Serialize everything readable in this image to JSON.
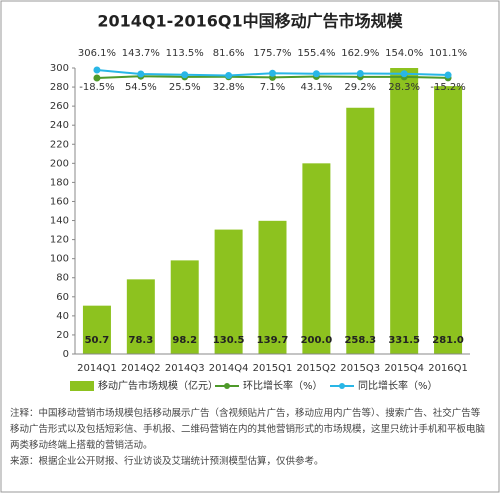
{
  "chart_data": {
    "type": "bar",
    "title": "2014Q1-2016Q1中国移动广告市场规模",
    "categories": [
      "2014Q1",
      "2014Q2",
      "2014Q3",
      "2014Q4",
      "2015Q1",
      "2015Q2",
      "2015Q3",
      "2015Q4",
      "2016Q1"
    ],
    "series": [
      {
        "name": "移动广告市场规模（亿元）",
        "type": "bar",
        "color": "#8dc21f",
        "values": [
          50.7,
          78.3,
          98.2,
          130.5,
          139.7,
          200.0,
          258.3,
          331.5,
          281.0
        ],
        "value_labels": [
          "50.7",
          "78.3",
          "98.2",
          "130.5",
          "139.7",
          "200.0",
          "258.3",
          "331.5",
          "281.0"
        ]
      },
      {
        "name": "环比增长率（%）",
        "type": "line",
        "axis": "y2",
        "color": "#4e9a2a",
        "values": [
          -18.5,
          54.5,
          25.5,
          32.8,
          7.1,
          43.1,
          29.2,
          28.3,
          -15.2
        ],
        "value_labels": [
          "-18.5%",
          "54.5%",
          "25.5%",
          "32.8%",
          "7.1%",
          "43.1%",
          "29.2%",
          "28.3%",
          "-15.2%"
        ]
      },
      {
        "name": "同比增长率（%）",
        "type": "line",
        "axis": "y2",
        "color": "#29b6e6",
        "values": [
          306.1,
          143.7,
          113.5,
          81.6,
          175.7,
          155.4,
          162.9,
          154.0,
          101.1
        ],
        "value_labels": [
          "306.1%",
          "143.7%",
          "113.5%",
          "81.6%",
          "175.7%",
          "155.4%",
          "162.9%",
          "154.0%",
          "101.1%"
        ]
      }
    ],
    "ylim": [
      0,
      300
    ],
    "yticks": [
      0,
      20,
      40,
      60,
      80,
      100,
      120,
      140,
      160,
      180,
      200,
      220,
      240,
      260,
      280,
      300
    ],
    "notes": [
      "注释：中国移动营销市场规模包括移动展示广告（含视频贴片广告，移动应用内广告等）、搜索广告、社交广告等移动广告形式以及包括短彩信、手机报、二维码营销在内的其他营销形式的市场规模，这里只统计手机和平板电脑两类移动终端上搭载的营销活动。",
      "来源：根据企业公开财报、行业访谈及艾瑞统计预测模型估算，仅供参考。"
    ]
  }
}
